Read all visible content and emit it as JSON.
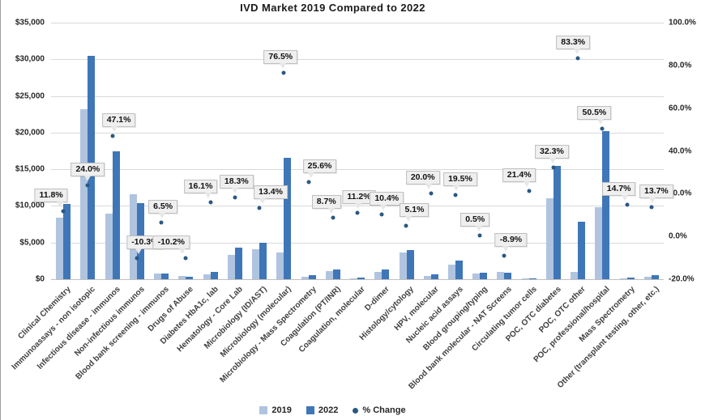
{
  "chart_data": {
    "type": "bar",
    "subtype": "grouped-bars-with-percent-scatter",
    "title": "IVD Market 2019 Compared to 2022",
    "categories": [
      "Clinical Chemistry",
      "Immunoassays - non isotopic",
      "Infectious disease - immunos",
      "Non-infectious immunos",
      "Blood bank screening - immunos",
      "Drugs of Abuse",
      "Diabetes HbA1c, lab",
      "Hematology - Core Lab",
      "Microbiology (ID/AST)",
      "Microbiology (molecular)",
      "Microbiology - Mass Spectrometry",
      "Coagulation (PT/INR)",
      "Coagulation, molecular",
      "D-dimer",
      "Histology/cytology",
      "HPV, molecular",
      "Nucleic acid assays",
      "Blood grouping/typing",
      "Blood bank molecular - NAT Screens",
      "Circulating tumor cells",
      "POC, OTC diabetes",
      "POC, OTC other",
      "POC, professional/hospital",
      "Mass Spectrometry",
      "Other (transplant testing, other, etc.)"
    ],
    "series": [
      {
        "name": "2019",
        "color": "#b0c4e0",
        "values": [
          8400,
          23200,
          8900,
          11600,
          750,
          400,
          700,
          3300,
          4100,
          3600,
          300,
          1150,
          100,
          1000,
          3700,
          400,
          2000,
          750,
          1050,
          120,
          11000,
          1000,
          9800,
          150,
          300
        ]
      },
      {
        "name": "2022",
        "color": "#3f76b7",
        "values": [
          10300,
          30500,
          17400,
          10400,
          800,
          350,
          950,
          4300,
          5000,
          16600,
          550,
          1300,
          200,
          1300,
          4000,
          650,
          2600,
          850,
          850,
          150,
          15500,
          7800,
          20200,
          250,
          550
        ]
      }
    ],
    "pct_series": {
      "name": "% Change",
      "color": "#2a5784",
      "labels": [
        "11.8%",
        "24.0%",
        "47.1%",
        "-10.3%",
        "6.5%",
        "-10.2%",
        "16.1%",
        "18.3%",
        "13.4%",
        "76.5%",
        "25.6%",
        "8.7%",
        "11.2%",
        "10.4%",
        "5.1%",
        "20.0%",
        "19.5%",
        "0.5%",
        "-8.9%",
        "21.4%",
        "32.3%",
        "83.3%",
        "50.5%",
        "14.7%",
        "13.7%"
      ],
      "values": [
        11.8,
        24.0,
        47.1,
        -10.3,
        6.5,
        -10.2,
        16.1,
        18.3,
        13.4,
        76.5,
        25.6,
        8.7,
        11.2,
        10.4,
        5.1,
        20.0,
        19.5,
        0.5,
        -8.9,
        21.4,
        32.3,
        83.3,
        50.5,
        14.7,
        13.7
      ],
      "label_dx": [
        -15,
        0,
        8,
        10,
        2,
        -18,
        -12,
        2,
        14,
        -4,
        14,
        -8,
        2,
        6,
        10,
        -10,
        6,
        -6,
        8,
        -12,
        -2,
        -6,
        -10,
        -10,
        6
      ]
    },
    "y_axis_left": {
      "min": 0,
      "max": 35000,
      "tick_labels": [
        "$35,000",
        "$30,000",
        "$25,000",
        "$20,000",
        "$15,000",
        "$10,000",
        "$5,000",
        "$0"
      ],
      "grid": true
    },
    "y_axis_right": {
      "min": -20,
      "max": 100,
      "tick_labels": [
        "100.0%",
        "80.0%",
        "60.0%",
        "40.0%",
        "20.0%",
        "0.0%",
        "-20.0%"
      ]
    },
    "legend": {
      "position": "bottom",
      "entries": [
        "2019",
        "2022",
        "% Change"
      ]
    },
    "colors": {
      "bar_2019": "#b0c4e0",
      "bar_2022": "#3f76b7",
      "pct_marker": "#2a5784",
      "gridline": "#d9d9d9",
      "callout_bg": "#efefef",
      "callout_border": "#bfbfbf",
      "text": "#262626"
    }
  }
}
